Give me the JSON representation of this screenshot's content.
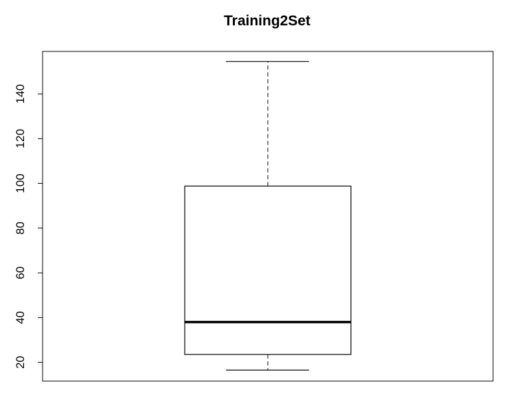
{
  "chart_data": {
    "type": "box",
    "title": "Training2Set",
    "xlabel": "",
    "ylabel": "",
    "ylim": [
      11.6,
      159.0
    ],
    "yticks": [
      20,
      40,
      60,
      80,
      100,
      120,
      140
    ],
    "ytick_labels": [
      "20",
      "40",
      "60",
      "80",
      "100",
      "120",
      "140"
    ],
    "box": {
      "min": 16.5,
      "q1": 23.5,
      "median": 38.0,
      "q3": 98.8,
      "max": 154.5
    },
    "grid": false,
    "legend": false,
    "colors": {
      "stroke": "#000000",
      "background": "#ffffff"
    }
  }
}
